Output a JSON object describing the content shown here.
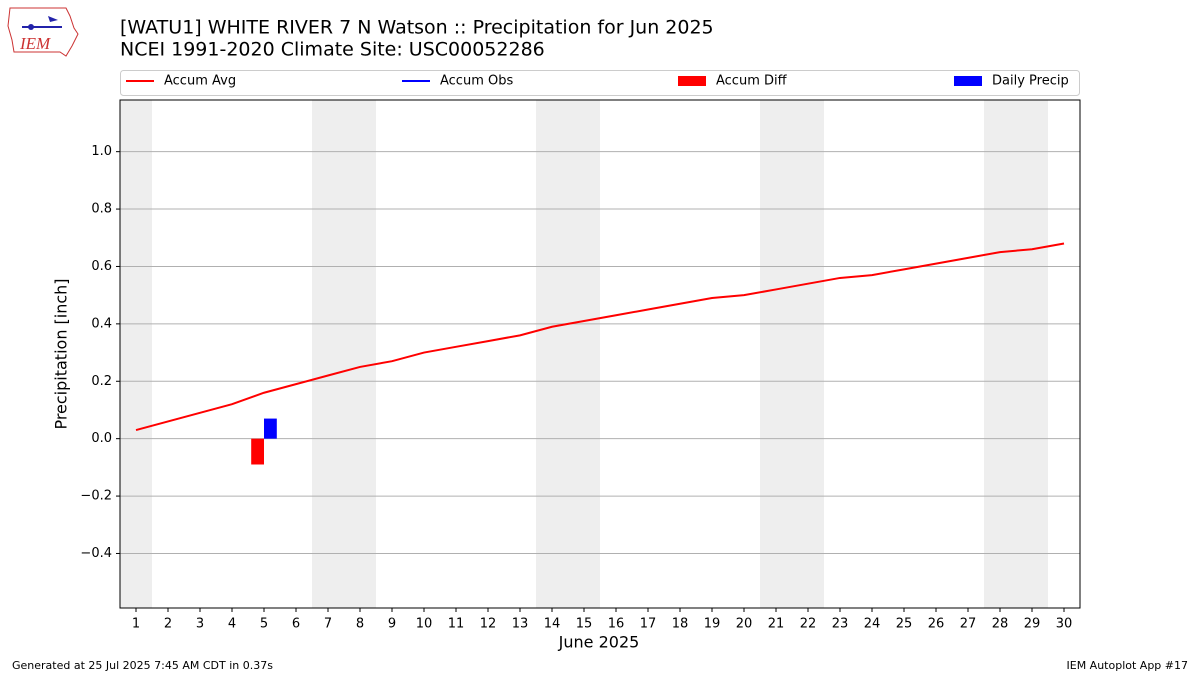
{
  "logo_text": "IEM",
  "footer": {
    "left": "Generated at 25 Jul 2025 7:45 AM CDT in 0.37s",
    "right": "IEM Autoplot App #17"
  },
  "chart_data": {
    "type": "line",
    "title": "[WATU1] WHITE RIVER 7 N Watson :: Precipitation for Jun 2025",
    "subtitle": "NCEI 1991-2020 Climate Site: USC00052286",
    "x_label": "June 2025",
    "y_label": "Precipitation [inch]",
    "x": [
      1,
      2,
      3,
      4,
      5,
      6,
      7,
      8,
      9,
      10,
      11,
      12,
      13,
      14,
      15,
      16,
      17,
      18,
      19,
      20,
      21,
      22,
      23,
      24,
      25,
      26,
      27,
      28,
      29,
      30
    ],
    "xlim": [
      0.5,
      30.5
    ],
    "xticks": [
      1,
      2,
      3,
      4,
      5,
      6,
      7,
      8,
      9,
      10,
      11,
      12,
      13,
      14,
      15,
      16,
      17,
      18,
      19,
      20,
      21,
      22,
      23,
      24,
      25,
      26,
      27,
      28,
      29,
      30
    ],
    "ylim": [
      -0.59,
      1.18
    ],
    "yticks": [
      {
        "value": -0.4,
        "label": "−0.4"
      },
      {
        "value": -0.2,
        "label": "−0.2"
      },
      {
        "value": 0.0,
        "label": "0.0"
      },
      {
        "value": 0.2,
        "label": "0.2"
      },
      {
        "value": 0.4,
        "label": "0.4"
      },
      {
        "value": 0.6,
        "label": "0.6"
      },
      {
        "value": 0.8,
        "label": "0.8"
      },
      {
        "value": 1.0,
        "label": "1.0"
      }
    ],
    "grid": true,
    "legend": "top",
    "shaded_bands": [
      [
        0.5,
        1.5
      ],
      [
        6.5,
        8.5
      ],
      [
        13.5,
        15.5
      ],
      [
        20.5,
        22.5
      ],
      [
        27.5,
        29.5
      ]
    ],
    "shade_color": "#eeeeee",
    "series": [
      {
        "name": "Accum Avg",
        "type": "line",
        "color": "#ff0000",
        "values": [
          0.03,
          0.06,
          0.09,
          0.12,
          0.16,
          0.19,
          0.22,
          0.25,
          0.27,
          0.3,
          0.32,
          0.34,
          0.36,
          0.39,
          0.41,
          0.43,
          0.45,
          0.47,
          0.49,
          0.5,
          0.52,
          0.54,
          0.56,
          0.57,
          0.59,
          0.61,
          0.63,
          0.65,
          0.66,
          0.68
        ]
      },
      {
        "name": "Accum Obs",
        "type": "line",
        "color": "#0000ff",
        "values": [
          null,
          null,
          null,
          null,
          null,
          null,
          null,
          null,
          null,
          null,
          null,
          null,
          null,
          null,
          null,
          null,
          null,
          null,
          null,
          null,
          null,
          null,
          null,
          null,
          null,
          null,
          null,
          null,
          null,
          null
        ]
      },
      {
        "name": "Accum Diff",
        "type": "bar",
        "side": "left",
        "color": "#ff0000",
        "values": [
          null,
          null,
          null,
          null,
          -0.09,
          null,
          null,
          null,
          null,
          null,
          null,
          null,
          null,
          null,
          null,
          null,
          null,
          null,
          null,
          null,
          null,
          null,
          null,
          null,
          null,
          null,
          null,
          null,
          null,
          null
        ]
      },
      {
        "name": "Daily Precip",
        "type": "bar",
        "side": "right",
        "color": "#0000ff",
        "values": [
          null,
          null,
          null,
          null,
          0.07,
          null,
          null,
          null,
          null,
          null,
          null,
          null,
          null,
          null,
          null,
          null,
          null,
          null,
          null,
          null,
          null,
          null,
          null,
          null,
          null,
          null,
          null,
          null,
          null,
          null
        ]
      }
    ]
  }
}
